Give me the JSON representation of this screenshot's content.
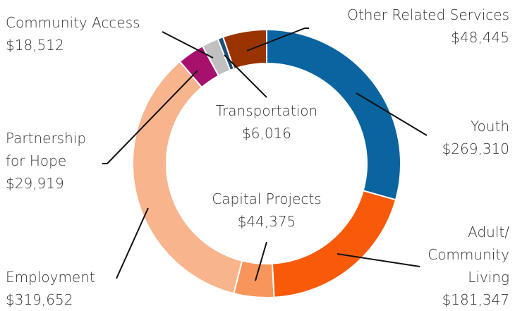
{
  "chart_data": {
    "type": "donut",
    "categories": [
      "Youth",
      "Adult/ Community Living",
      "Capital Projects",
      "Employment",
      "Partnership for Hope",
      "Community Access",
      "Transportation",
      "Other Related Services"
    ],
    "values": [
      269310,
      181347,
      44375,
      319652,
      29919,
      18512,
      6016,
      48445
    ],
    "value_labels": [
      "$269,310",
      "$181,347",
      "$44,375",
      "$319,652",
      "$29,919",
      "$18,512",
      "$6,016",
      "$48,445"
    ],
    "colors": [
      "#0a64a0",
      "#f85a0a",
      "#f8955a",
      "#f8b48c",
      "#a8106e",
      "#c0c0c0",
      "#1a4f7a",
      "#993300"
    ]
  }
}
